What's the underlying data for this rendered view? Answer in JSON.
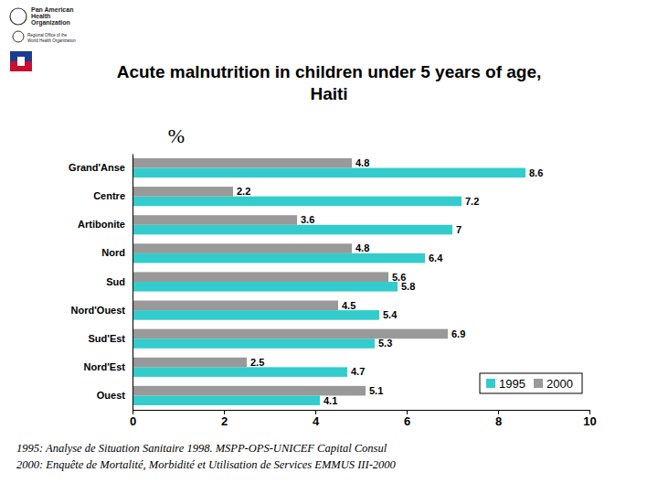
{
  "chart_data": {
    "type": "bar",
    "orientation": "horizontal",
    "title": [
      "Acute malnutrition in children under 5 years of age,",
      "Haiti"
    ],
    "xlabel": "%",
    "categories": [
      "Grand'Anse",
      "Centre",
      "Artibonite",
      "Nord",
      "Sud",
      "Nord'Ouest",
      "Sud'Est",
      "Nord'Est",
      "Ouest"
    ],
    "series": [
      {
        "name": "1995",
        "color": "#33cccc",
        "values": [
          8.6,
          7.2,
          7,
          6.4,
          5.8,
          5.4,
          5.3,
          4.7,
          4.1
        ]
      },
      {
        "name": "2000",
        "color": "#999999",
        "values": [
          4.8,
          2.2,
          3.6,
          4.8,
          5.6,
          4.5,
          6.9,
          2.5,
          5.1
        ]
      }
    ],
    "xlim": [
      0,
      10
    ],
    "xticks": [
      0,
      2,
      4,
      6,
      8,
      10
    ],
    "grid": false,
    "legend": "lower right",
    "data_labels": true,
    "source": [
      "1995: Analyse de Situation Sanitaire 1998. MSPP-OPS-UNICEF Capital Consul",
      "2000: Enquête de Mortalité, Morbidité et Utilisation de Services EMMUS III-2000"
    ],
    "logo_text": [
      "Pan American",
      "Health",
      "Organization",
      "Regional Office of the",
      "World Health Organization"
    ]
  }
}
